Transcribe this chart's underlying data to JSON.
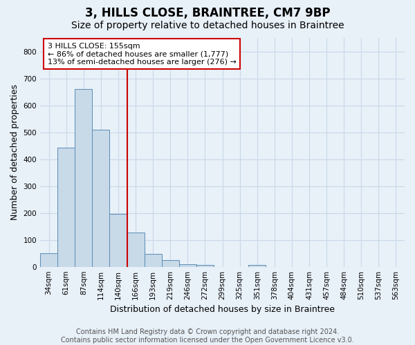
{
  "title": "3, HILLS CLOSE, BRAINTREE, CM7 9BP",
  "subtitle": "Size of property relative to detached houses in Braintree",
  "xlabel": "Distribution of detached houses by size in Braintree",
  "ylabel": "Number of detached properties",
  "categories": [
    "34sqm",
    "61sqm",
    "87sqm",
    "114sqm",
    "140sqm",
    "166sqm",
    "193sqm",
    "219sqm",
    "246sqm",
    "272sqm",
    "299sqm",
    "325sqm",
    "351sqm",
    "378sqm",
    "404sqm",
    "431sqm",
    "457sqm",
    "484sqm",
    "510sqm",
    "537sqm",
    "563sqm"
  ],
  "values": [
    50,
    443,
    660,
    510,
    197,
    127,
    48,
    25,
    10,
    7,
    0,
    0,
    7,
    0,
    0,
    0,
    0,
    0,
    0,
    0,
    0
  ],
  "bar_color": "#c8d9e8",
  "bar_edge_color": "#5a8db5",
  "vline_x": 5.0,
  "vline_color": "#cc0000",
  "annotation_text": "3 HILLS CLOSE: 155sqm\n← 86% of detached houses are smaller (1,777)\n13% of semi-detached houses are larger (276) →",
  "annotation_box_color": "#ffffff",
  "annotation_box_edge": "#cc0000",
  "ylim": [
    0,
    850
  ],
  "yticks": [
    0,
    100,
    200,
    300,
    400,
    500,
    600,
    700,
    800
  ],
  "footnote": "Contains HM Land Registry data © Crown copyright and database right 2024.\nContains public sector information licensed under the Open Government Licence v3.0.",
  "title_fontsize": 12,
  "subtitle_fontsize": 10,
  "label_fontsize": 9,
  "tick_fontsize": 7.5,
  "annotation_fontsize": 8,
  "footnote_fontsize": 7,
  "grid_color": "#c8d8e8",
  "bg_color": "#e8f0f8",
  "axes_bg_color": "#e8f0f8"
}
